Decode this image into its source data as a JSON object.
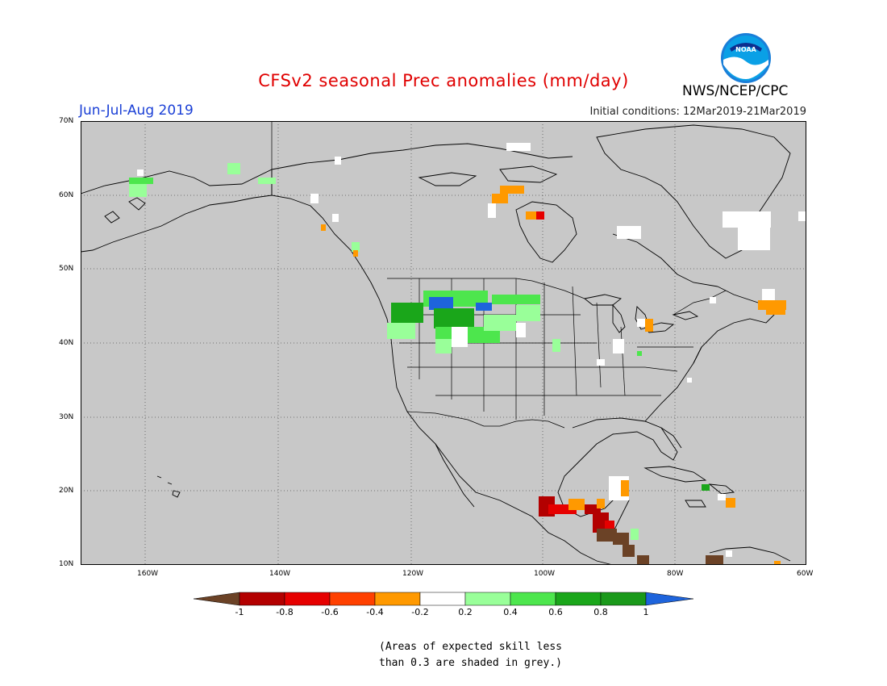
{
  "title": "CFSv2 seasonal Prec anomalies (mm/day)",
  "period": "Jun-Jul-Aug 2019",
  "initial_conditions": "Initial conditions: 12Mar2019-21Mar2019",
  "agency": "NWS/NCEP/CPC",
  "logo_text": "NOAA",
  "map": {
    "lat_labels": [
      "70N",
      "60N",
      "50N",
      "40N",
      "30N",
      "20N",
      "10N"
    ],
    "lon_labels": [
      "160W",
      "140W",
      "120W",
      "100W",
      "80W",
      "60W"
    ],
    "background_color": "#c8c8c8",
    "grid": "dotted"
  },
  "legend": {
    "labels": [
      "-1",
      "-0.8",
      "-0.6",
      "-0.4",
      "-0.2",
      "0.2",
      "0.4",
      "0.6",
      "0.8",
      "1"
    ],
    "colors": [
      "#6b4226",
      "#b30000",
      "#e60000",
      "#ff4000",
      "#ff9900",
      "#ffffff",
      "#99ff99",
      "#4de64d",
      "#1aa61a",
      "#1a991a",
      "#1e64dc"
    ]
  },
  "note_line1": "(Areas of expected skill less",
  "note_line2": "than 0.3 are shaded in grey.)"
}
